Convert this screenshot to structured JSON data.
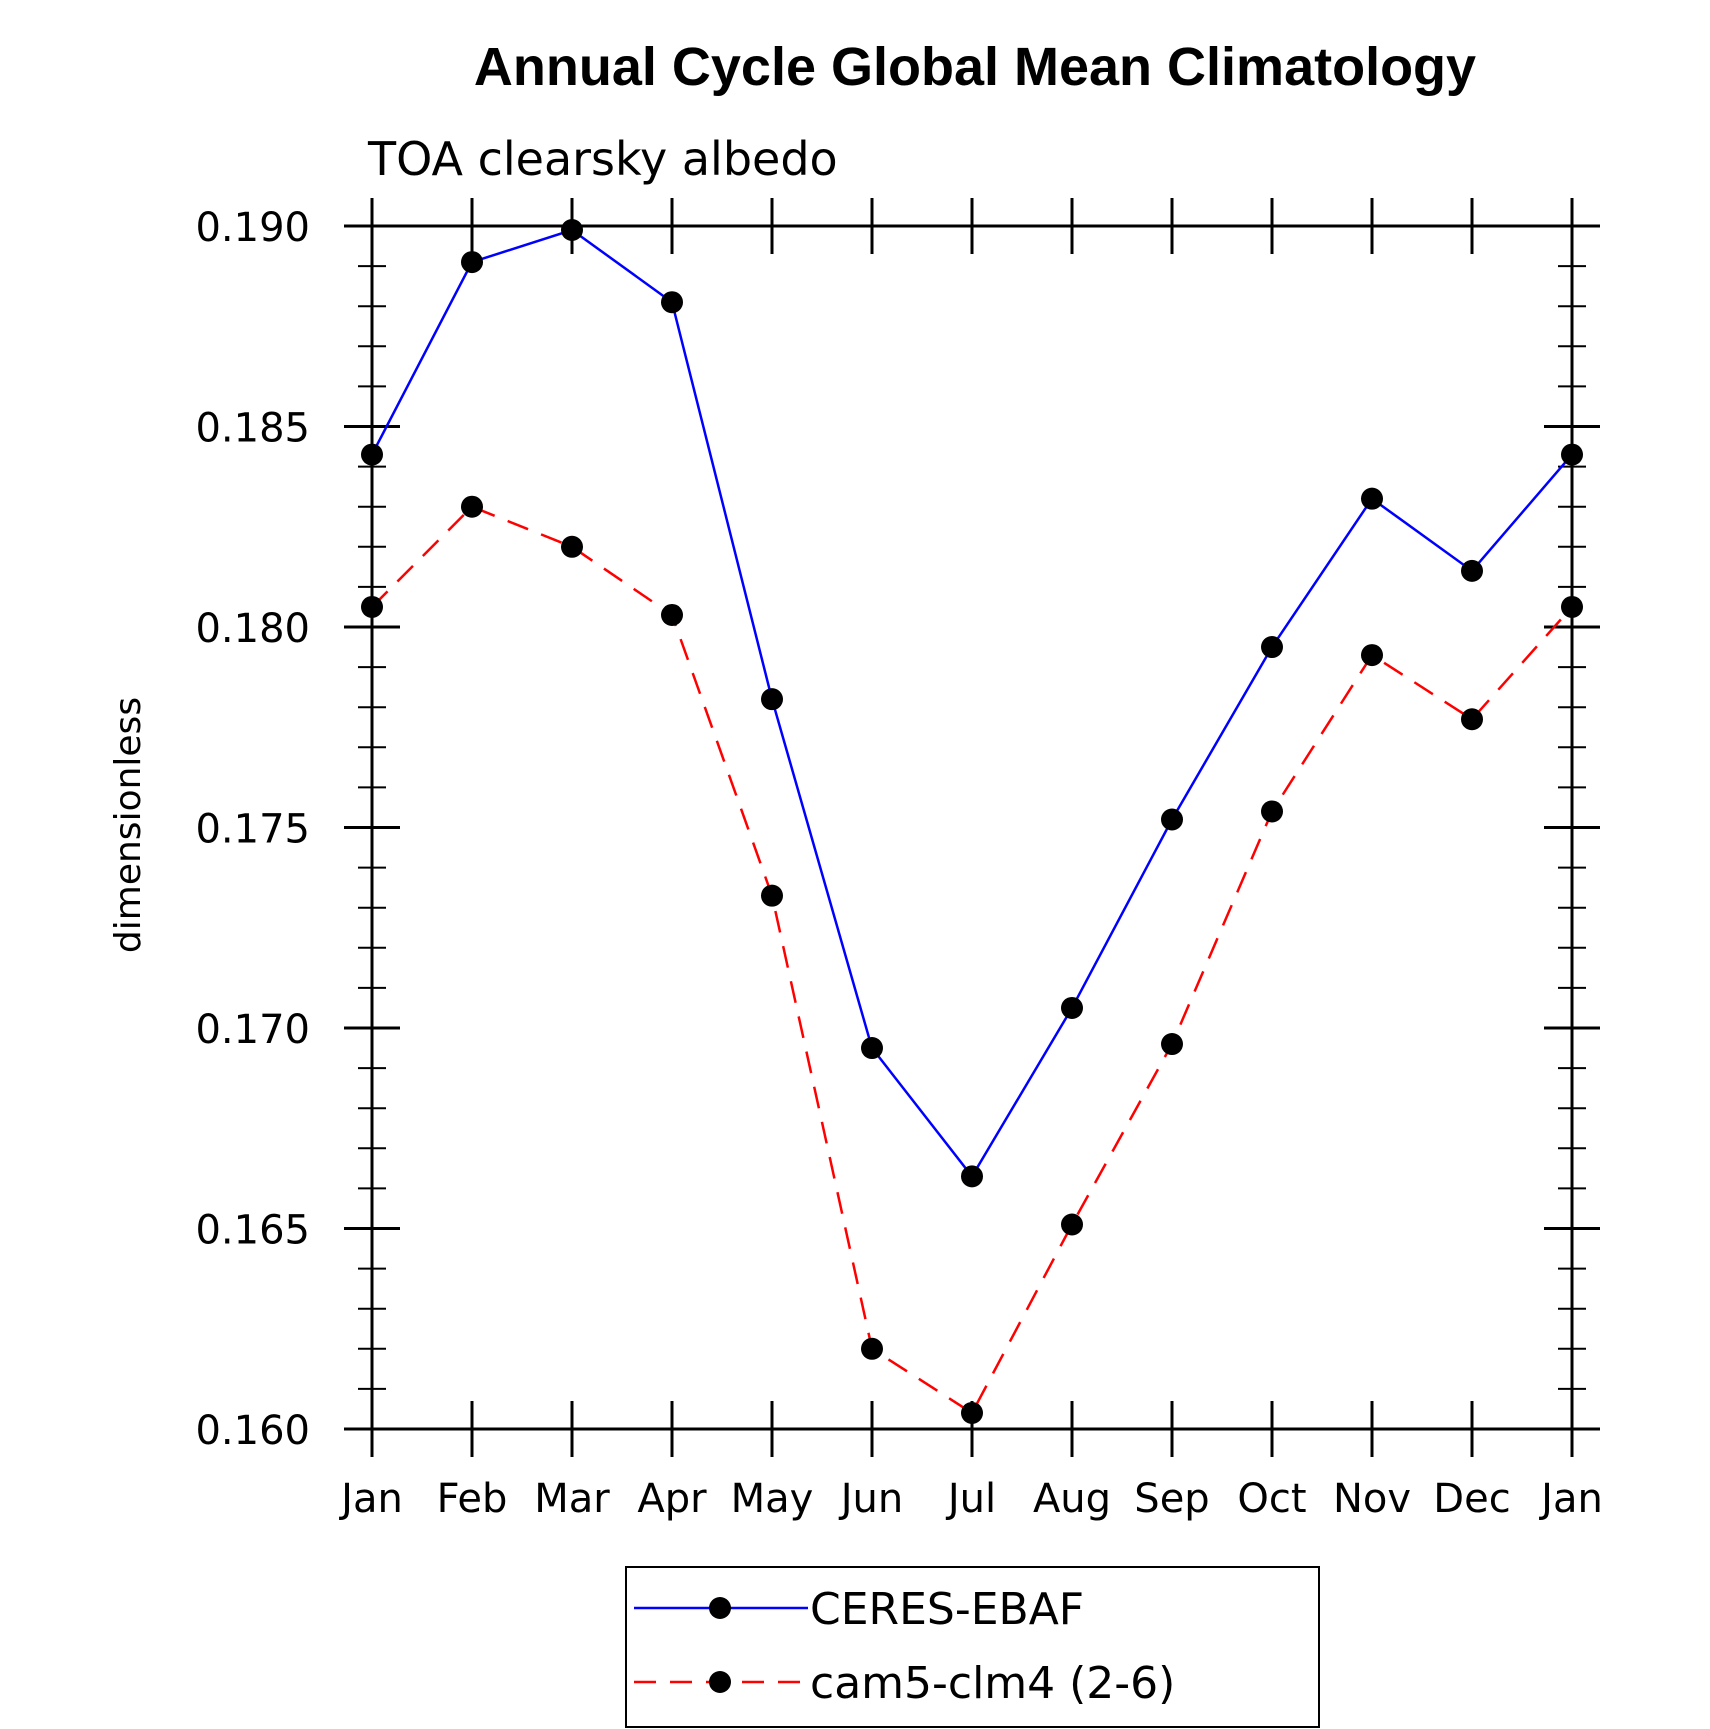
{
  "chart_data": {
    "type": "line",
    "title": "Annual Cycle Global Mean Climatology",
    "subtitle": "TOA clearsky albedo",
    "xlabel": "",
    "ylabel": "dimensionless",
    "categories": [
      "Jan",
      "Feb",
      "Mar",
      "Apr",
      "May",
      "Jun",
      "Jul",
      "Aug",
      "Sep",
      "Oct",
      "Nov",
      "Dec",
      "Jan"
    ],
    "ylim": [
      0.16,
      0.19
    ],
    "yticks": [
      "0.160",
      "0.165",
      "0.170",
      "0.175",
      "0.180",
      "0.185",
      "0.190"
    ],
    "grid": false,
    "legend_position": "bottom",
    "series": [
      {
        "name": "CERES-EBAF",
        "color": "#0000ff",
        "dashed": false,
        "values": [
          0.1843,
          0.1891,
          0.1899,
          0.1881,
          0.1782,
          0.1695,
          0.1663,
          0.1705,
          0.1752,
          0.1795,
          0.1832,
          0.1814,
          0.1843
        ]
      },
      {
        "name": "cam5-clm4 (2-6)",
        "color": "#ff0000",
        "dashed": true,
        "values": [
          0.1805,
          0.183,
          0.182,
          0.1803,
          0.1733,
          0.162,
          0.1604,
          0.1651,
          0.1696,
          0.1754,
          0.1793,
          0.1777,
          0.1805
        ]
      }
    ],
    "marker_color": "#000000"
  }
}
